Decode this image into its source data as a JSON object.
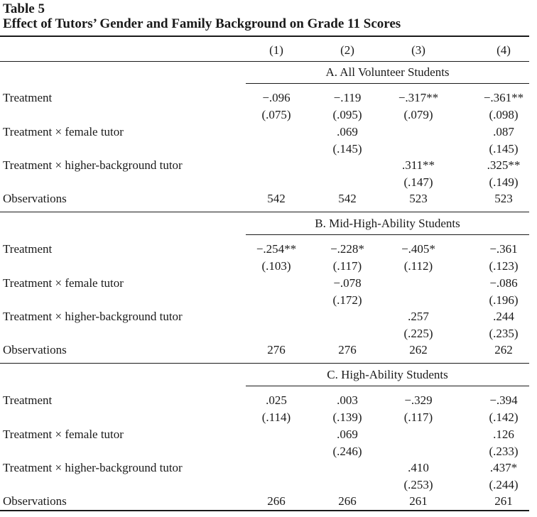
{
  "table": {
    "label": "Table 5",
    "title": "Effect of Tutors’ Gender and Family Background on Grade 11 Scores",
    "columns": [
      "(1)",
      "(2)",
      "(3)",
      "(4)"
    ],
    "panels": [
      {
        "title": "A. All Volunteer Students",
        "rows": [
          {
            "label": "Treatment",
            "values": [
              "−.096",
              "−.119",
              "−.317**",
              "−.361**"
            ],
            "se": [
              "(.075)",
              "(.095)",
              "(.079)",
              "(.098)"
            ]
          },
          {
            "label": "Treatment × female tutor",
            "values": [
              "",
              ".069",
              "",
              ".087"
            ],
            "se": [
              "",
              "(.145)",
              "",
              "(.145)"
            ]
          },
          {
            "label": "Treatment × higher-background tutor",
            "values": [
              "",
              "",
              ".311**",
              ".325**"
            ],
            "se": [
              "",
              "",
              "(.147)",
              "(.149)"
            ]
          },
          {
            "label": "Observations",
            "values": [
              "542",
              "542",
              "523",
              "523"
            ]
          }
        ]
      },
      {
        "title": "B. Mid-High-Ability Students",
        "rows": [
          {
            "label": "Treatment",
            "values": [
              "−.254**",
              "−.228*",
              "−.405*",
              "−.361"
            ],
            "se": [
              "(.103)",
              "(.117)",
              "(.112)",
              "(.123)"
            ]
          },
          {
            "label": "Treatment × female tutor",
            "values": [
              "",
              "−.078",
              "",
              "−.086"
            ],
            "se": [
              "",
              "(.172)",
              "",
              "(.196)"
            ]
          },
          {
            "label": "Treatment × higher-background tutor",
            "values": [
              "",
              "",
              ".257",
              ".244"
            ],
            "se": [
              "",
              "",
              "(.225)",
              "(.235)"
            ]
          },
          {
            "label": "Observations",
            "values": [
              "276",
              "276",
              "262",
              "262"
            ]
          }
        ]
      },
      {
        "title": "C. High-Ability Students",
        "rows": [
          {
            "label": "Treatment",
            "values": [
              ".025",
              ".003",
              "−.329",
              "−.394"
            ],
            "se": [
              "(.114)",
              "(.139)",
              "(.117)",
              "(.142)"
            ]
          },
          {
            "label": "Treatment × female tutor",
            "values": [
              "",
              ".069",
              "",
              ".126"
            ],
            "se": [
              "",
              "(.246)",
              "",
              "(.233)"
            ]
          },
          {
            "label": "Treatment × higher-background tutor",
            "values": [
              "",
              "",
              ".410",
              ".437*"
            ],
            "se": [
              "",
              "",
              "(.253)",
              "(.244)"
            ]
          },
          {
            "label": "Observations",
            "values": [
              "266",
              "266",
              "261",
              "261"
            ]
          }
        ]
      }
    ]
  }
}
